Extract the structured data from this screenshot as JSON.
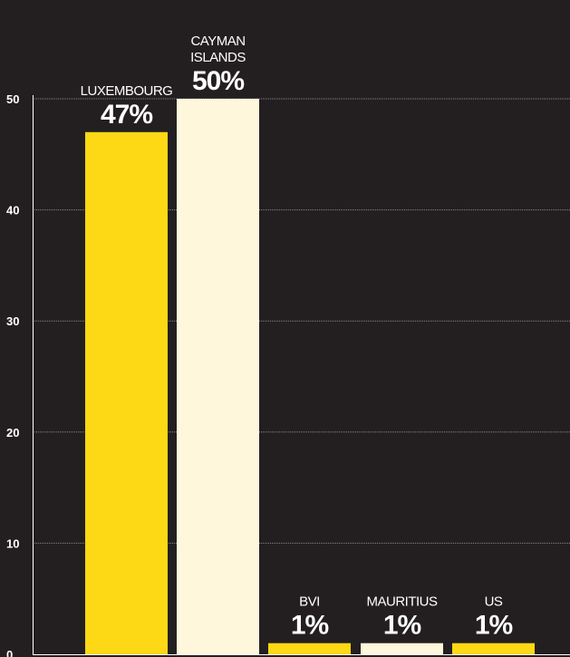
{
  "chart_data": {
    "type": "bar",
    "title": "",
    "xlabel": "",
    "ylabel": "",
    "ylim": [
      0,
      50
    ],
    "yticks": [
      0,
      10,
      20,
      30,
      40,
      50
    ],
    "grid": true,
    "categories": [
      {
        "label_lines": [
          "LUXEMBOURG"
        ],
        "value": 47,
        "value_label": "47%",
        "color": "#fdd815"
      },
      {
        "label_lines": [
          "CAYMAN",
          "ISLANDS"
        ],
        "value": 50,
        "value_label": "50%",
        "color": "#fff7dc"
      },
      {
        "label_lines": [
          "BVI"
        ],
        "value": 1,
        "value_label": "1%",
        "color": "#fdd815"
      },
      {
        "label_lines": [
          "MAURITIUS"
        ],
        "value": 1,
        "value_label": "1%",
        "color": "#fff7dc"
      },
      {
        "label_lines": [
          "US"
        ],
        "value": 1,
        "value_label": "1%",
        "color": "#fdd815"
      }
    ]
  },
  "colors": {
    "background": "#231f20",
    "gridline": "#8a8a8a",
    "text": "#ffffff"
  }
}
